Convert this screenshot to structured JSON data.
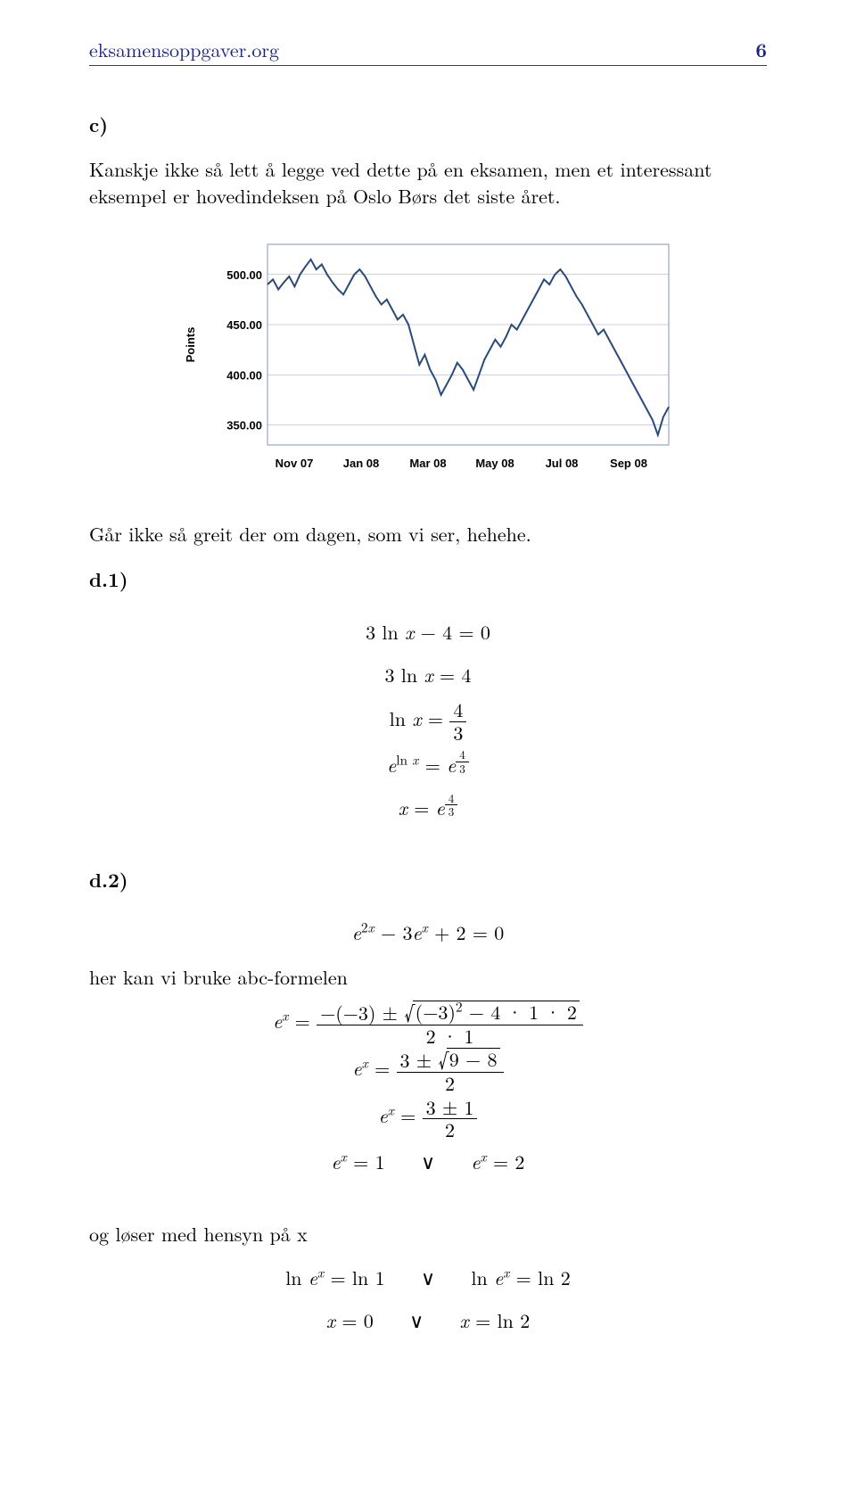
{
  "header": {
    "site": "eksamensoppgaver.org",
    "page_number": "6"
  },
  "section_c": {
    "label": "c)",
    "text": "Kanskje ikke så lett å legge ved dette på en eksamen, men et interessant eksempel er hovedindeksen på Oslo Børs det siste året."
  },
  "chart": {
    "type": "line",
    "y_axis_label": "Points",
    "y_ticks": [
      "350.00",
      "400.00",
      "450.00",
      "500.00"
    ],
    "ylim": [
      330,
      530
    ],
    "x_labels": [
      "Nov 07",
      "Jan 08",
      "Mar 08",
      "May 08",
      "Jul 08",
      "Sep 08"
    ],
    "line_color": "#2a4a7a",
    "line_width": 2,
    "grid_color": "#9aa0c2",
    "border_color": "#8a90b8",
    "background_color": "#ffffff",
    "label_color": "#000000",
    "tick_fontsize": 13,
    "label_fontsize": 13,
    "data": [
      [
        0,
        490
      ],
      [
        5,
        495
      ],
      [
        10,
        485
      ],
      [
        15,
        492
      ],
      [
        20,
        498
      ],
      [
        25,
        488
      ],
      [
        30,
        500
      ],
      [
        35,
        508
      ],
      [
        40,
        515
      ],
      [
        45,
        505
      ],
      [
        50,
        510
      ],
      [
        55,
        500
      ],
      [
        60,
        492
      ],
      [
        65,
        485
      ],
      [
        70,
        480
      ],
      [
        75,
        490
      ],
      [
        80,
        500
      ],
      [
        85,
        505
      ],
      [
        90,
        498
      ],
      [
        95,
        488
      ],
      [
        100,
        478
      ],
      [
        105,
        470
      ],
      [
        110,
        475
      ],
      [
        115,
        465
      ],
      [
        120,
        455
      ],
      [
        125,
        460
      ],
      [
        130,
        450
      ],
      [
        135,
        430
      ],
      [
        140,
        410
      ],
      [
        145,
        420
      ],
      [
        150,
        405
      ],
      [
        155,
        395
      ],
      [
        160,
        380
      ],
      [
        165,
        390
      ],
      [
        170,
        400
      ],
      [
        175,
        412
      ],
      [
        180,
        405
      ],
      [
        185,
        395
      ],
      [
        190,
        385
      ],
      [
        195,
        400
      ],
      [
        200,
        415
      ],
      [
        205,
        425
      ],
      [
        210,
        435
      ],
      [
        215,
        428
      ],
      [
        220,
        438
      ],
      [
        225,
        450
      ],
      [
        230,
        445
      ],
      [
        235,
        455
      ],
      [
        240,
        465
      ],
      [
        245,
        475
      ],
      [
        250,
        485
      ],
      [
        255,
        495
      ],
      [
        260,
        490
      ],
      [
        265,
        500
      ],
      [
        270,
        505
      ],
      [
        275,
        498
      ],
      [
        280,
        488
      ],
      [
        285,
        478
      ],
      [
        290,
        470
      ],
      [
        295,
        460
      ],
      [
        300,
        450
      ],
      [
        305,
        440
      ],
      [
        310,
        445
      ],
      [
        315,
        435
      ],
      [
        320,
        425
      ],
      [
        325,
        415
      ],
      [
        330,
        405
      ],
      [
        335,
        395
      ],
      [
        340,
        385
      ],
      [
        345,
        375
      ],
      [
        350,
        365
      ],
      [
        355,
        355
      ],
      [
        360,
        340
      ],
      [
        365,
        358
      ],
      [
        370,
        368
      ]
    ]
  },
  "after_chart": "Går ikke så greit der om dagen, som vi ser, hehehe.",
  "d1": {
    "label": "d.1)",
    "lines": {
      "l1_lhs": "3 ln x − 4",
      "l1_rhs": "0",
      "l2_lhs": "3 ln x",
      "l2_rhs": "4",
      "l3_lhs": "ln x",
      "l3_num": "4",
      "l3_den": "3",
      "l4_lhs_base": "e",
      "l4_lhs_exp": "ln x",
      "l4_rhs_base": "e",
      "l4_rhs_exp_num": "4",
      "l4_rhs_exp_den": "3",
      "l5_lhs": "x",
      "l5_rhs_base": "e",
      "l5_rhs_exp_num": "4",
      "l5_rhs_exp_den": "3"
    }
  },
  "d2": {
    "label": "d.2)",
    "eq_top": "e^{2x} − 3e^{x} + 2 = 0",
    "text_abc": "her kan vi bruke abc-formelen",
    "lines": {
      "l1_lhs": "e^{x}",
      "l1_num_a": "−(−3) ±",
      "l1_sqrt": "(−3)^{2} − 4 · 1 · 2",
      "l1_den": "2 · 1",
      "l2_lhs": "e^{x}",
      "l2_num_a": "3 ±",
      "l2_sqrt": "9 − 8",
      "l2_den": "2",
      "l3_lhs": "e^{x}",
      "l3_num": "3 ± 1",
      "l3_den": "2",
      "l4_left_lhs": "e^{x}",
      "l4_left_rhs": "1",
      "or": "∨",
      "l4_right_lhs": "e^{x}",
      "l4_right_rhs": "2"
    },
    "text_solve": "og løser med hensyn på x",
    "final": {
      "l1_left": "ln e^{x} = ln 1",
      "or": "∨",
      "l1_right": "ln e^{x} = ln 2",
      "l2_left": "x = 0",
      "l2_right": "x = ln 2"
    }
  }
}
